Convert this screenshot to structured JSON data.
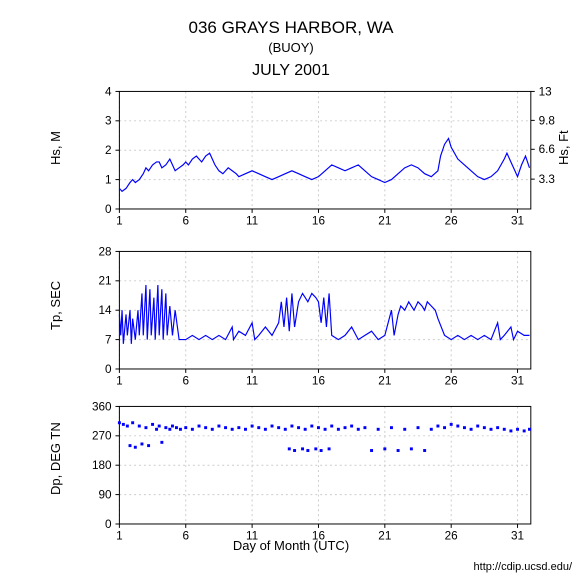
{
  "title": "036 GRAYS HARBOR, WA",
  "subtitle": "(BUOY)",
  "month_title": "JULY 2001",
  "xlabel": "Day of Month (UTC)",
  "credit": "http://cdip.ucsd.edu/",
  "background_color": "#ffffff",
  "line_color": "#0000ff",
  "grid_color": "#ffffff",
  "axis_color": "#000000",
  "x_ticks": [
    1,
    6,
    11,
    16,
    21,
    26,
    31
  ],
  "x_range": [
    1,
    32
  ],
  "chart1": {
    "ylabel_left": "Hs, M",
    "ylabel_right": "Hs, Ft",
    "yticks_left": [
      0,
      1,
      2,
      3,
      4
    ],
    "yticks_right": [
      3.3,
      6.6,
      9.8,
      13
    ],
    "ylim": [
      0,
      4
    ],
    "data": [
      [
        1.0,
        0.7
      ],
      [
        1.2,
        0.6
      ],
      [
        1.5,
        0.7
      ],
      [
        1.8,
        0.9
      ],
      [
        2.0,
        1.0
      ],
      [
        2.2,
        0.9
      ],
      [
        2.5,
        1.0
      ],
      [
        2.8,
        1.2
      ],
      [
        3.0,
        1.4
      ],
      [
        3.2,
        1.3
      ],
      [
        3.5,
        1.5
      ],
      [
        3.8,
        1.6
      ],
      [
        4.0,
        1.6
      ],
      [
        4.2,
        1.4
      ],
      [
        4.5,
        1.5
      ],
      [
        4.8,
        1.7
      ],
      [
        5.0,
        1.5
      ],
      [
        5.2,
        1.3
      ],
      [
        5.5,
        1.4
      ],
      [
        5.8,
        1.5
      ],
      [
        6.0,
        1.6
      ],
      [
        6.2,
        1.5
      ],
      [
        6.5,
        1.7
      ],
      [
        6.8,
        1.8
      ],
      [
        7.0,
        1.7
      ],
      [
        7.2,
        1.6
      ],
      [
        7.5,
        1.8
      ],
      [
        7.8,
        1.9
      ],
      [
        8.0,
        1.7
      ],
      [
        8.2,
        1.5
      ],
      [
        8.5,
        1.3
      ],
      [
        8.8,
        1.2
      ],
      [
        9.0,
        1.3
      ],
      [
        9.2,
        1.4
      ],
      [
        9.5,
        1.3
      ],
      [
        9.8,
        1.2
      ],
      [
        10.0,
        1.1
      ],
      [
        10.5,
        1.2
      ],
      [
        11.0,
        1.3
      ],
      [
        11.5,
        1.2
      ],
      [
        12.0,
        1.1
      ],
      [
        12.5,
        1.0
      ],
      [
        13.0,
        1.1
      ],
      [
        13.5,
        1.2
      ],
      [
        14.0,
        1.3
      ],
      [
        14.5,
        1.2
      ],
      [
        15.0,
        1.1
      ],
      [
        15.5,
        1.0
      ],
      [
        16.0,
        1.1
      ],
      [
        16.5,
        1.3
      ],
      [
        17.0,
        1.5
      ],
      [
        17.5,
        1.4
      ],
      [
        18.0,
        1.3
      ],
      [
        18.5,
        1.4
      ],
      [
        19.0,
        1.5
      ],
      [
        19.5,
        1.3
      ],
      [
        20.0,
        1.1
      ],
      [
        20.5,
        1.0
      ],
      [
        21.0,
        0.9
      ],
      [
        21.5,
        1.0
      ],
      [
        22.0,
        1.2
      ],
      [
        22.5,
        1.4
      ],
      [
        23.0,
        1.5
      ],
      [
        23.5,
        1.4
      ],
      [
        24.0,
        1.2
      ],
      [
        24.5,
        1.1
      ],
      [
        25.0,
        1.3
      ],
      [
        25.2,
        1.8
      ],
      [
        25.5,
        2.2
      ],
      [
        25.8,
        2.4
      ],
      [
        26.0,
        2.1
      ],
      [
        26.5,
        1.7
      ],
      [
        27.0,
        1.5
      ],
      [
        27.5,
        1.3
      ],
      [
        28.0,
        1.1
      ],
      [
        28.5,
        1.0
      ],
      [
        29.0,
        1.1
      ],
      [
        29.5,
        1.3
      ],
      [
        30.0,
        1.7
      ],
      [
        30.2,
        1.9
      ],
      [
        30.5,
        1.6
      ],
      [
        30.8,
        1.3
      ],
      [
        31.0,
        1.1
      ],
      [
        31.3,
        1.5
      ],
      [
        31.6,
        1.8
      ],
      [
        31.9,
        1.4
      ]
    ]
  },
  "chart2": {
    "ylabel_left": "Tp, SEC",
    "yticks_left": [
      0,
      7,
      14,
      21,
      28
    ],
    "ylim": [
      0,
      28
    ],
    "data": [
      [
        1.0,
        13
      ],
      [
        1.1,
        8
      ],
      [
        1.2,
        14
      ],
      [
        1.3,
        6
      ],
      [
        1.5,
        13
      ],
      [
        1.6,
        8
      ],
      [
        1.8,
        14
      ],
      [
        1.9,
        6
      ],
      [
        2.0,
        12
      ],
      [
        2.2,
        7
      ],
      [
        2.4,
        14
      ],
      [
        2.5,
        8
      ],
      [
        2.7,
        18
      ],
      [
        2.8,
        8
      ],
      [
        3.0,
        20
      ],
      [
        3.1,
        7
      ],
      [
        3.3,
        19
      ],
      [
        3.4,
        8
      ],
      [
        3.6,
        17
      ],
      [
        3.7,
        7
      ],
      [
        3.9,
        20
      ],
      [
        4.0,
        8
      ],
      [
        4.2,
        19
      ],
      [
        4.3,
        7
      ],
      [
        4.5,
        18
      ],
      [
        4.6,
        8
      ],
      [
        4.8,
        15
      ],
      [
        5.0,
        8
      ],
      [
        5.2,
        14
      ],
      [
        5.5,
        7
      ],
      [
        6.0,
        7
      ],
      [
        6.5,
        8
      ],
      [
        7.0,
        7
      ],
      [
        7.5,
        8
      ],
      [
        8.0,
        7
      ],
      [
        8.5,
        8
      ],
      [
        9.0,
        7
      ],
      [
        9.5,
        10
      ],
      [
        9.6,
        7
      ],
      [
        10.0,
        9
      ],
      [
        10.5,
        8
      ],
      [
        11.0,
        11
      ],
      [
        11.2,
        7
      ],
      [
        11.5,
        8
      ],
      [
        12.0,
        10
      ],
      [
        12.5,
        8
      ],
      [
        13.0,
        11
      ],
      [
        13.2,
        16
      ],
      [
        13.4,
        10
      ],
      [
        13.6,
        17
      ],
      [
        13.8,
        9
      ],
      [
        14.0,
        18
      ],
      [
        14.2,
        10
      ],
      [
        14.5,
        16
      ],
      [
        14.8,
        18
      ],
      [
        15.0,
        17
      ],
      [
        15.2,
        16
      ],
      [
        15.5,
        18
      ],
      [
        15.8,
        17
      ],
      [
        16.0,
        16
      ],
      [
        16.2,
        11
      ],
      [
        16.4,
        17
      ],
      [
        16.6,
        10
      ],
      [
        16.8,
        18
      ],
      [
        17.0,
        8
      ],
      [
        17.5,
        7
      ],
      [
        18.0,
        8
      ],
      [
        18.5,
        10
      ],
      [
        19.0,
        7
      ],
      [
        19.5,
        8
      ],
      [
        20.0,
        9
      ],
      [
        20.5,
        7
      ],
      [
        21.0,
        8
      ],
      [
        21.5,
        14
      ],
      [
        21.7,
        8
      ],
      [
        22.0,
        13
      ],
      [
        22.2,
        15
      ],
      [
        22.5,
        14
      ],
      [
        22.8,
        16
      ],
      [
        23.0,
        15
      ],
      [
        23.2,
        14
      ],
      [
        23.5,
        16
      ],
      [
        23.8,
        15
      ],
      [
        24.0,
        14
      ],
      [
        24.2,
        16
      ],
      [
        24.5,
        15
      ],
      [
        24.8,
        14
      ],
      [
        25.0,
        12
      ],
      [
        25.5,
        8
      ],
      [
        26.0,
        7
      ],
      [
        26.5,
        8
      ],
      [
        27.0,
        7
      ],
      [
        27.5,
        8
      ],
      [
        28.0,
        7
      ],
      [
        28.5,
        8
      ],
      [
        29.0,
        7
      ],
      [
        29.5,
        11
      ],
      [
        29.7,
        7
      ],
      [
        30.0,
        8
      ],
      [
        30.5,
        10
      ],
      [
        30.7,
        7
      ],
      [
        31.0,
        9
      ],
      [
        31.5,
        8
      ],
      [
        31.9,
        8
      ]
    ]
  },
  "chart3": {
    "ylabel_left": "Dp, DEG TN",
    "yticks_left": [
      0,
      90,
      180,
      270,
      360
    ],
    "ylim": [
      0,
      360
    ],
    "data": [
      [
        1.0,
        310
      ],
      [
        1.3,
        305
      ],
      [
        1.6,
        300
      ],
      [
        1.8,
        240
      ],
      [
        2.0,
        310
      ],
      [
        2.2,
        235
      ],
      [
        2.5,
        300
      ],
      [
        2.7,
        245
      ],
      [
        3.0,
        295
      ],
      [
        3.2,
        240
      ],
      [
        3.5,
        305
      ],
      [
        3.8,
        290
      ],
      [
        4.0,
        300
      ],
      [
        4.2,
        250
      ],
      [
        4.5,
        295
      ],
      [
        4.8,
        290
      ],
      [
        5.0,
        300
      ],
      [
        5.3,
        295
      ],
      [
        5.6,
        290
      ],
      [
        6.0,
        295
      ],
      [
        6.5,
        290
      ],
      [
        7.0,
        300
      ],
      [
        7.5,
        295
      ],
      [
        8.0,
        290
      ],
      [
        8.5,
        300
      ],
      [
        9.0,
        295
      ],
      [
        9.5,
        290
      ],
      [
        10.0,
        295
      ],
      [
        10.5,
        290
      ],
      [
        11.0,
        300
      ],
      [
        11.5,
        295
      ],
      [
        12.0,
        290
      ],
      [
        12.5,
        300
      ],
      [
        13.0,
        295
      ],
      [
        13.5,
        290
      ],
      [
        13.8,
        230
      ],
      [
        14.0,
        300
      ],
      [
        14.2,
        225
      ],
      [
        14.5,
        295
      ],
      [
        14.8,
        230
      ],
      [
        15.0,
        290
      ],
      [
        15.2,
        225
      ],
      [
        15.5,
        300
      ],
      [
        15.8,
        230
      ],
      [
        16.0,
        295
      ],
      [
        16.2,
        225
      ],
      [
        16.5,
        290
      ],
      [
        16.8,
        230
      ],
      [
        17.0,
        300
      ],
      [
        17.5,
        290
      ],
      [
        18.0,
        295
      ],
      [
        18.5,
        300
      ],
      [
        19.0,
        290
      ],
      [
        19.5,
        295
      ],
      [
        20.0,
        225
      ],
      [
        20.5,
        290
      ],
      [
        21.0,
        230
      ],
      [
        21.5,
        295
      ],
      [
        22.0,
        225
      ],
      [
        22.5,
        290
      ],
      [
        23.0,
        230
      ],
      [
        23.5,
        295
      ],
      [
        24.0,
        225
      ],
      [
        24.5,
        290
      ],
      [
        25.0,
        300
      ],
      [
        25.5,
        295
      ],
      [
        26.0,
        305
      ],
      [
        26.5,
        300
      ],
      [
        27.0,
        295
      ],
      [
        27.5,
        290
      ],
      [
        28.0,
        300
      ],
      [
        28.5,
        295
      ],
      [
        29.0,
        290
      ],
      [
        29.5,
        295
      ],
      [
        30.0,
        290
      ],
      [
        30.5,
        285
      ],
      [
        31.0,
        290
      ],
      [
        31.5,
        285
      ],
      [
        31.9,
        290
      ]
    ]
  }
}
